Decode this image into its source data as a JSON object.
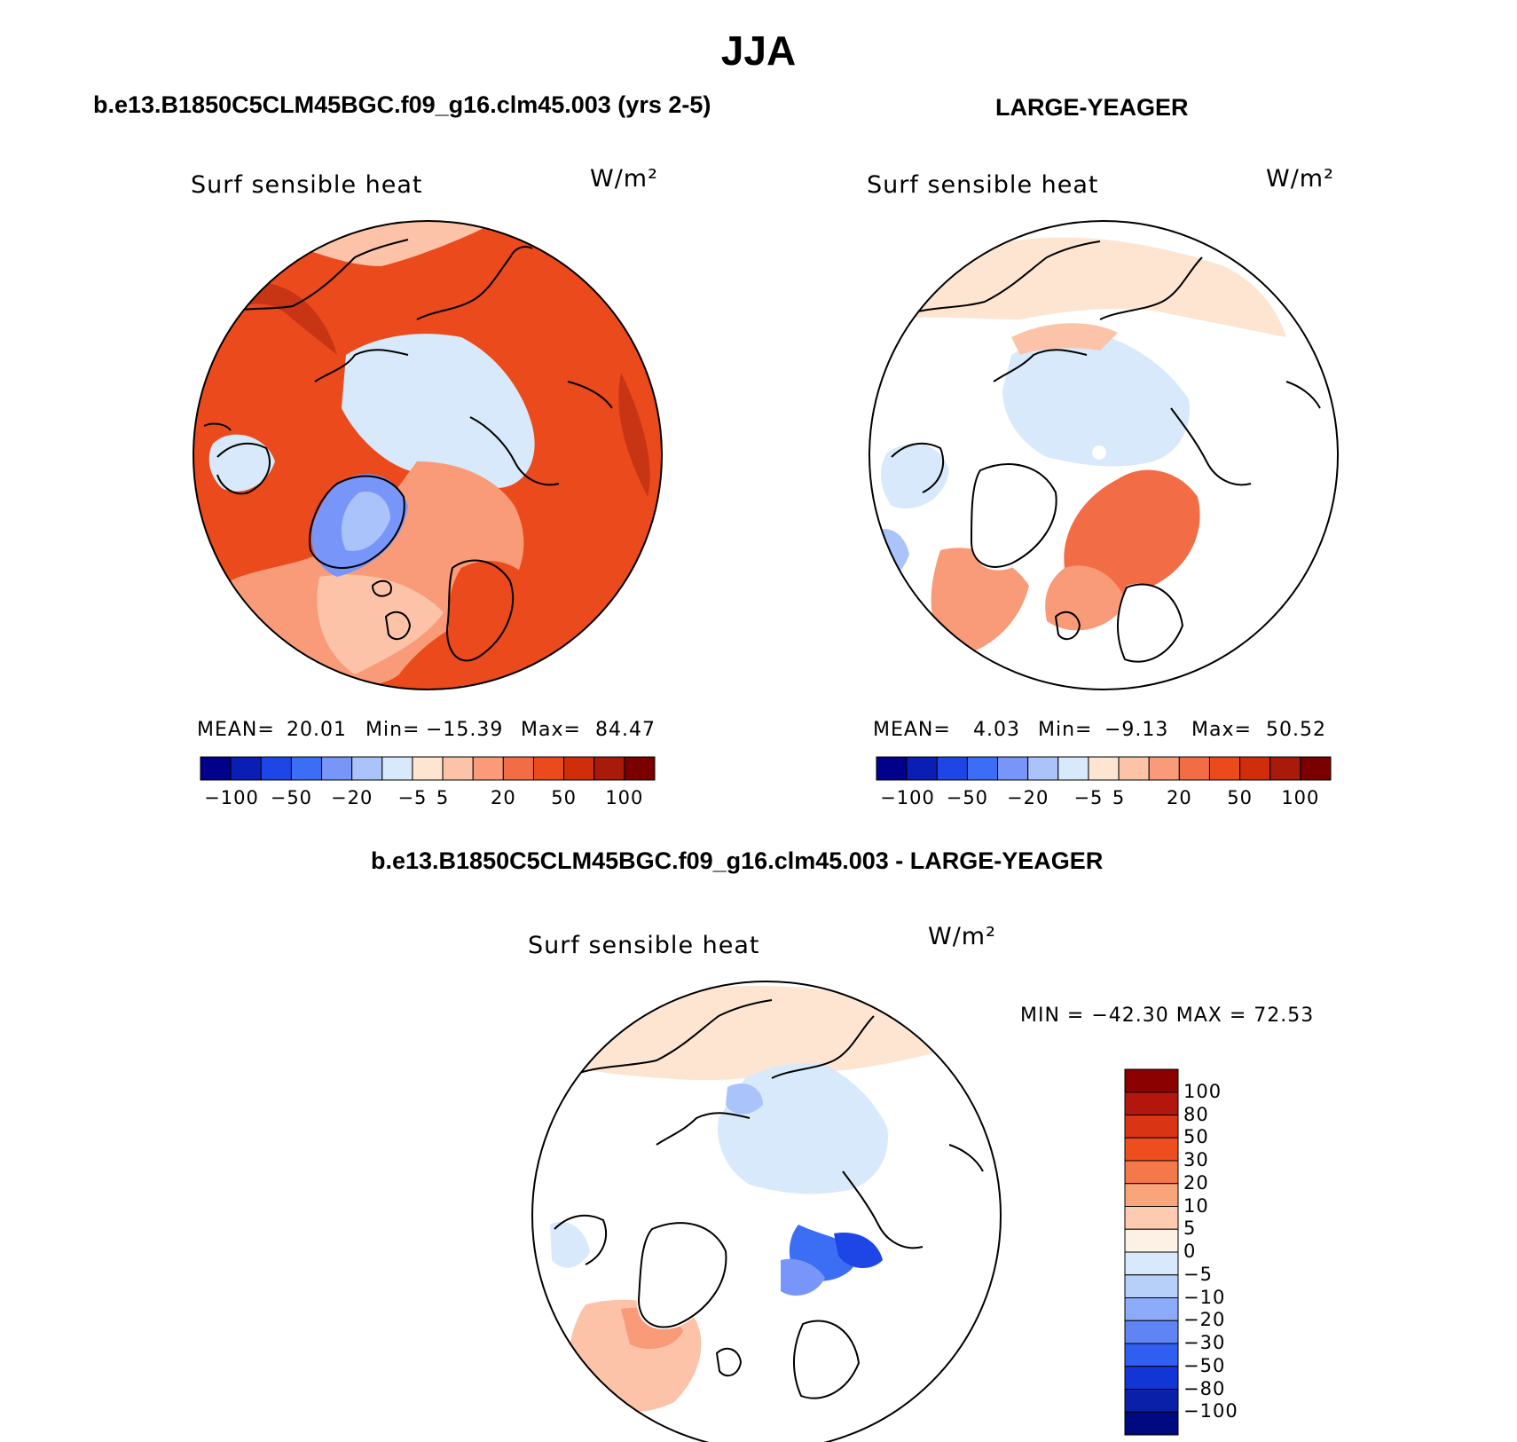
{
  "title": "JJA",
  "panels": [
    {
      "case": "b.e13.B1850C5CLM45BGC.f09_g16.clm45.003 (yrs 2-5)",
      "variable": "Surf  sensible  heat",
      "units": "W/m²",
      "stats": {
        "mean_label": "MEAN=",
        "mean": "20.01",
        "min_label": "Min=",
        "min": "−15.39",
        "max_label": "Max=",
        "max": "84.47"
      },
      "field_level": "mostly 20 to 50 W/m² over land, -5 to 5 over the Arctic Ocean, -20 to -10 over Greenland"
    },
    {
      "case": "LARGE-YEAGER",
      "variable": "Surf  sensible  heat",
      "units": "W/m²",
      "stats": {
        "mean_label": "MEAN=",
        "mean": "4.03",
        "min_label": "Min=",
        "min": "−9.13",
        "max_label": "Max=",
        "max": "50.52"
      },
      "field_level": "mostly -5 to 10 W/m², up to 20-50 over the Barents/Kara Sea"
    },
    {
      "case": "b.e13.B1850C5CLM45BGC.f09_g16.clm45.003 - LARGE-YEAGER",
      "variable": "Surf  sensible  heat",
      "units": "W/m²",
      "stats": {
        "text": "MIN = −42.30  MAX =   72.53"
      }
    }
  ],
  "colorbar_horizontal": {
    "tick_labels": [
      "−100",
      "−50",
      "−20",
      "−5",
      "5",
      "20",
      "50",
      "100"
    ],
    "colors": [
      "#00008b",
      "#0a1eb4",
      "#1e46e6",
      "#3c6ef5",
      "#7896fa",
      "#aac3fa",
      "#d7e9fa",
      "#fde5d2",
      "#fcc3a8",
      "#f99a78",
      "#f26c45",
      "#eb4a1c",
      "#d02d0a",
      "#a81a0a",
      "#7a0000"
    ]
  },
  "colorbar_vertical": {
    "tick_labels": [
      "100",
      "80",
      "50",
      "30",
      "20",
      "10",
      "5",
      "0",
      "−5",
      "−10",
      "−20",
      "−30",
      "−50",
      "−80",
      "−100"
    ],
    "colors_top_to_bottom": [
      "#8b0000",
      "#b2160c",
      "#d93414",
      "#ee4e1e",
      "#f5784a",
      "#faa47c",
      "#fdcbb0",
      "#fdf0e4",
      "#d7e9fa",
      "#b6d0fa",
      "#8cabfa",
      "#5f85f5",
      "#2f5ef0",
      "#1236d6",
      "#0a20a8",
      "#000a80"
    ]
  },
  "colors": {
    "ocean_neg": "#d7e9fa",
    "land_warm": "#eb4a1c",
    "coast": "#000000"
  }
}
